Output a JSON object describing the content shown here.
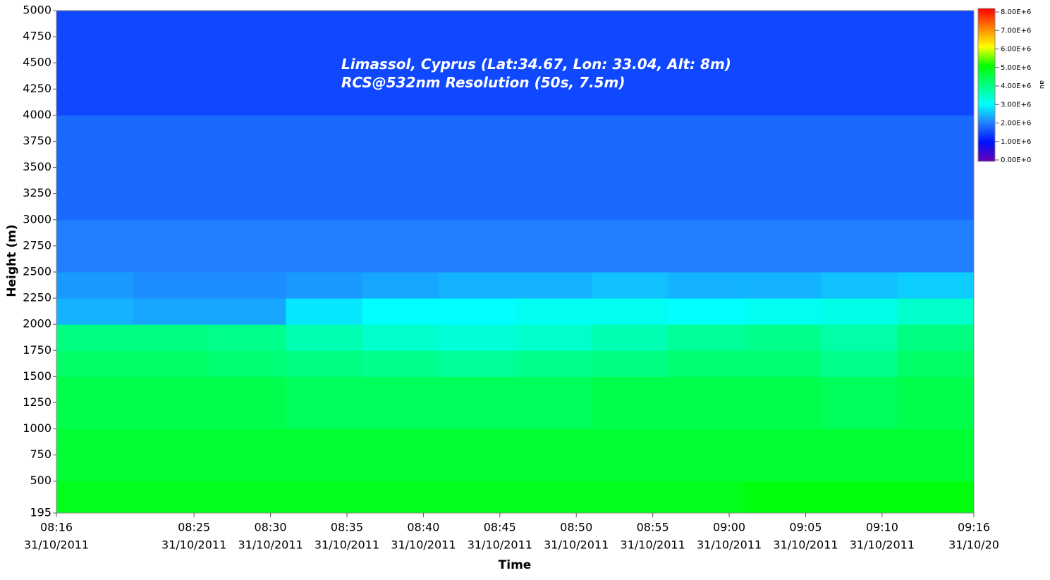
{
  "chart_data": {
    "type": "heatmap",
    "annotations": [
      "Limassol, Cyprus  (Lat:34.67, Lon: 33.04, Alt: 8m)",
      "RCS@532nm Resolution (50s, 7.5m)"
    ],
    "xlabel": "Time",
    "ylabel": "Height (m)",
    "colorbar_label": "au",
    "xlim": [
      "08:16",
      "09:16"
    ],
    "xticks": [
      {
        "time": "08:16",
        "date": "31/10/2011"
      },
      {
        "time": "08:25",
        "date": "31/10/2011"
      },
      {
        "time": "08:30",
        "date": "31/10/2011"
      },
      {
        "time": "08:35",
        "date": "31/10/2011"
      },
      {
        "time": "08:40",
        "date": "31/10/2011"
      },
      {
        "time": "08:45",
        "date": "31/10/2011"
      },
      {
        "time": "08:50",
        "date": "31/10/2011"
      },
      {
        "time": "08:55",
        "date": "31/10/2011"
      },
      {
        "time": "09:00",
        "date": "31/10/2011"
      },
      {
        "time": "09:05",
        "date": "31/10/2011"
      },
      {
        "time": "09:10",
        "date": "31/10/2011"
      },
      {
        "time": "09:16",
        "date": "31/10/20"
      }
    ],
    "ylim": [
      195,
      5000
    ],
    "yticks": [
      195,
      500,
      750,
      1000,
      1250,
      1500,
      1750,
      2000,
      2250,
      2500,
      2750,
      3000,
      3250,
      3500,
      3750,
      4000,
      4250,
      4500,
      4750,
      5000
    ],
    "x_bins": [
      "08:16",
      "08:21",
      "08:26",
      "08:31",
      "08:36",
      "08:41",
      "08:46",
      "08:51",
      "08:56",
      "09:01",
      "09:06",
      "09:11",
      "09:16"
    ],
    "y_bins": [
      195,
      500,
      1000,
      1500,
      1750,
      2000,
      2250,
      2500,
      3000,
      4000,
      5000
    ],
    "z": [
      [
        4800000,
        4800000,
        4800000,
        4800000,
        4800000,
        4800000,
        4800000,
        4800000,
        4800000,
        4900000,
        4900000,
        4900000
      ],
      [
        4600000,
        4600000,
        4600000,
        4600000,
        4600000,
        4600000,
        4600000,
        4600000,
        4600000,
        4600000,
        4600000,
        4600000
      ],
      [
        4400000,
        4400000,
        4400000,
        4300000,
        4300000,
        4300000,
        4300000,
        4400000,
        4400000,
        4400000,
        4300000,
        4400000
      ],
      [
        4200000,
        4200000,
        4100000,
        4000000,
        3900000,
        3800000,
        3900000,
        4000000,
        4100000,
        4100000,
        3900000,
        4200000
      ],
      [
        4000000,
        4000000,
        3900000,
        3600000,
        3400000,
        3300000,
        3400000,
        3600000,
        3800000,
        3900000,
        3700000,
        4000000
      ],
      [
        2400000,
        2300000,
        2300000,
        2800000,
        3000000,
        3000000,
        3100000,
        3100000,
        3000000,
        3100000,
        3200000,
        3400000
      ],
      [
        2200000,
        2100000,
        2100000,
        2200000,
        2300000,
        2400000,
        2400000,
        2500000,
        2400000,
        2400000,
        2500000,
        2600000
      ],
      [
        2000000,
        2000000,
        2000000,
        2000000,
        2000000,
        2000000,
        2000000,
        2000000,
        2000000,
        2000000,
        2000000,
        2000000
      ],
      [
        1800000,
        1800000,
        1800000,
        1800000,
        1800000,
        1800000,
        1800000,
        1800000,
        1800000,
        1800000,
        1800000,
        1800000
      ],
      [
        1500000,
        1500000,
        1500000,
        1500000,
        1500000,
        1500000,
        1500000,
        1500000,
        1500000,
        1500000,
        1500000,
        1500000
      ]
    ],
    "clim": [
      0,
      8000000
    ],
    "cticks": [
      {
        "value": 0,
        "label": "0.00E+0"
      },
      {
        "value": 1000000,
        "label": "1.00E+6"
      },
      {
        "value": 2000000,
        "label": "2.00E+6"
      },
      {
        "value": 3000000,
        "label": "3.00E+6"
      },
      {
        "value": 4000000,
        "label": "4.00E+6"
      },
      {
        "value": 5000000,
        "label": "5.00E+6"
      },
      {
        "value": 6000000,
        "label": "6.00E+6"
      },
      {
        "value": 7000000,
        "label": "7.00E+6"
      },
      {
        "value": 8000000,
        "label": "8.00E+6"
      }
    ],
    "colorscale": [
      [
        0,
        "#6a00b0"
      ],
      [
        1000000,
        "#0010ff"
      ],
      [
        2000000,
        "#2080ff"
      ],
      [
        3000000,
        "#00ffff"
      ],
      [
        4000000,
        "#00ff80"
      ],
      [
        5000000,
        "#00ff00"
      ],
      [
        6000000,
        "#ffff00"
      ],
      [
        7000000,
        "#ff8000"
      ],
      [
        8000000,
        "#ff0000"
      ]
    ]
  }
}
